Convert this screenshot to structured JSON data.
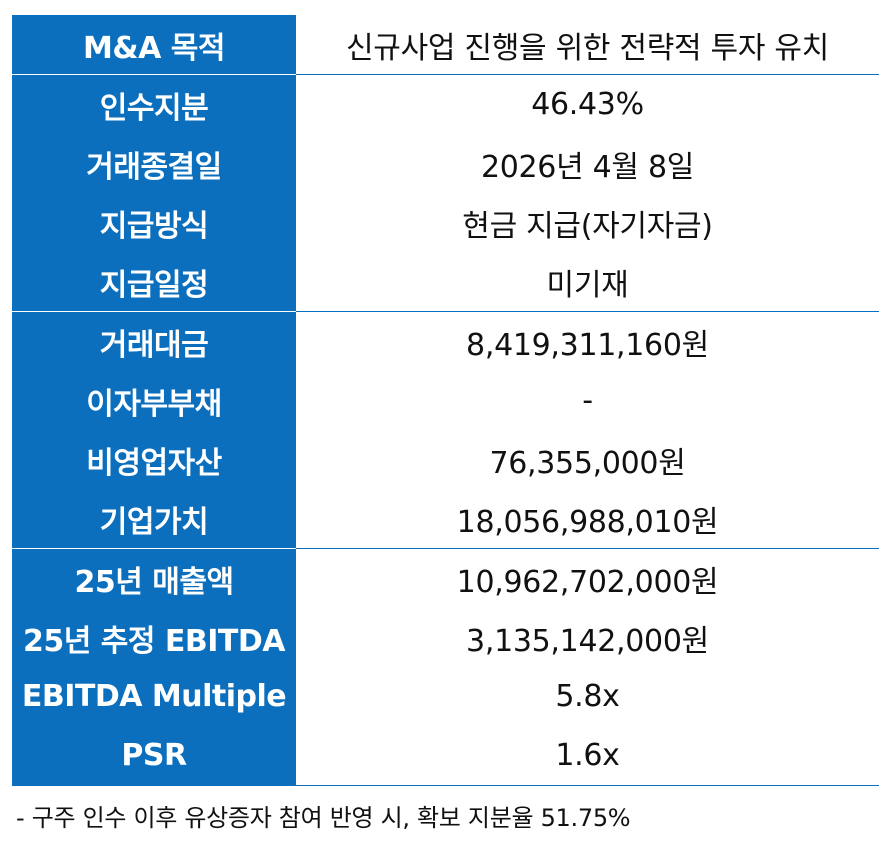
{
  "groups": [
    {
      "rows": [
        {
          "label": "M&A 목적",
          "value": "신규사업 진행을 위한 전략적 투자 유치"
        }
      ]
    },
    {
      "rows": [
        {
          "label": "인수지분",
          "value": "46.43%"
        },
        {
          "label": "거래종결일",
          "value": "2026년 4월 8일"
        },
        {
          "label": "지급방식",
          "value": "현금 지급(자기자금)"
        },
        {
          "label": "지급일정",
          "value": "미기재"
        }
      ]
    },
    {
      "rows": [
        {
          "label": "거래대금",
          "value": "8,419,311,160원"
        },
        {
          "label": "이자부부채",
          "value": "-"
        },
        {
          "label": "비영업자산",
          "value": "76,355,000원"
        },
        {
          "label": "기업가치",
          "value": "18,056,988,010원"
        }
      ]
    },
    {
      "rows": [
        {
          "label": "25년 매출액",
          "value": "10,962,702,000원"
        },
        {
          "label": "25년 추정 EBITDA",
          "value": "3,135,142,000원"
        },
        {
          "label": "EBITDA Multiple",
          "value": "5.8x"
        },
        {
          "label": "PSR",
          "value": "1.6x"
        }
      ]
    }
  ],
  "footnote": "- 구주 인수 이후 유상증자 참여 반영 시, 확보 지분율 51.75%",
  "colors": {
    "label_bg": "#0b6fbe",
    "label_text": "#ffffff",
    "value_text": "#111111"
  }
}
